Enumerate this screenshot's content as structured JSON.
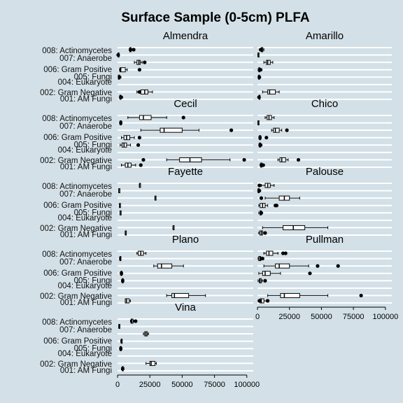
{
  "chart_data": {
    "type": "boxplot",
    "title": "Surface Sample (0-5cm) PLFA",
    "xlim": [
      0,
      105000
    ],
    "x_ticks": [
      0,
      25000,
      50000,
      75000,
      100000
    ],
    "x_tick_labels": [
      "0",
      "25000",
      "50000",
      "75000",
      "100000"
    ],
    "grid": "horizontal",
    "categories": [
      "001: AM Fungi",
      "002: Gram Negative",
      "004: Eukaryote",
      "005: Fungi",
      "006: Gram Positive",
      "007: Anaerobe",
      "008: Actinomycetes"
    ],
    "panels": [
      {
        "name": "Almendra",
        "boxes": [
          {
            "category": "001: AM Fungi",
            "whislo": 1500,
            "q1": 1800,
            "med": 2000,
            "q3": 2300,
            "whishi": 2600,
            "outliers": [
              2900
            ]
          },
          {
            "category": "002: Gram Negative",
            "whislo": 15000,
            "q1": 18000,
            "med": 21000,
            "q3": 23500,
            "whishi": 27000,
            "outliers": [
              17000
            ]
          },
          {
            "category": "004: Eukaryote",
            "whislo": 500,
            "q1": 700,
            "med": 900,
            "q3": 1100,
            "whishi": 1300,
            "outliers": [
              1600
            ]
          },
          {
            "category": "005: Fungi",
            "whislo": 1500,
            "q1": 2000,
            "med": 2500,
            "q3": 6000,
            "whishi": 7500,
            "outliers": [
              17000
            ]
          },
          {
            "category": "006: Gram Positive",
            "whislo": 13000,
            "q1": 15000,
            "med": 16500,
            "q3": 17500,
            "whishi": 19000,
            "outliers": [
              21000
            ]
          },
          {
            "category": "007: Anaerobe",
            "whislo": 300,
            "q1": 400,
            "med": 500,
            "q3": 600,
            "whishi": 700,
            "outliers": [
              500
            ]
          },
          {
            "category": "008: Actinomycetes",
            "whislo": 9000,
            "q1": 9500,
            "med": 10000,
            "q3": 10500,
            "whishi": 11000,
            "outliers": [
              12500
            ]
          }
        ]
      },
      {
        "name": "Amarillo",
        "boxes": [
          {
            "category": "001: AM Fungi",
            "whislo": 1000,
            "q1": 1200,
            "med": 1400,
            "q3": 1600,
            "whishi": 1800,
            "outliers": [
              1200
            ]
          },
          {
            "category": "002: Gram Negative",
            "whislo": 4000,
            "q1": 8000,
            "med": 9500,
            "q3": 14000,
            "whishi": 17000,
            "outliers": []
          },
          {
            "category": "004: Eukaryote",
            "whislo": 500,
            "q1": 800,
            "med": 1000,
            "q3": 1200,
            "whishi": 1500,
            "outliers": [
              1500
            ]
          },
          {
            "category": "005: Fungi",
            "whislo": 500,
            "q1": 1000,
            "med": 1300,
            "q3": 1600,
            "whishi": 2000,
            "outliers": [
              2500
            ]
          },
          {
            "category": "006: Gram Positive",
            "whislo": 5000,
            "q1": 7000,
            "med": 8000,
            "q3": 10000,
            "whishi": 12000,
            "outliers": []
          },
          {
            "category": "007: Anaerobe",
            "whislo": 300,
            "q1": 400,
            "med": 500,
            "q3": 600,
            "whishi": 700,
            "outliers": []
          },
          {
            "category": "008: Actinomycetes",
            "whislo": 2500,
            "q1": 3000,
            "med": 3500,
            "q3": 4200,
            "whishi": 5000,
            "outliers": [
              2500
            ]
          }
        ]
      },
      {
        "name": "Cecil",
        "boxes": [
          {
            "category": "001: AM Fungi",
            "whislo": 3000,
            "q1": 6000,
            "med": 8000,
            "q3": 10500,
            "whishi": 14000,
            "outliers": [
              18000
            ]
          },
          {
            "category": "002: Gram Negative",
            "whislo": 38000,
            "q1": 48000,
            "med": 56000,
            "q3": 65000,
            "whishi": 87000,
            "outliers": [
              20000,
              98000
            ]
          },
          {
            "category": "004: Eukaryote",
            "whislo": 2000,
            "q1": 3500,
            "med": 5000,
            "q3": 7000,
            "whishi": 10000,
            "outliers": [
              16000
            ]
          },
          {
            "category": "005: Fungi",
            "whislo": 3000,
            "q1": 5000,
            "med": 7000,
            "q3": 9500,
            "whishi": 13000,
            "outliers": [
              17000
            ]
          },
          {
            "category": "006: Gram Positive",
            "whislo": 18000,
            "q1": 33000,
            "med": 36000,
            "q3": 50000,
            "whishi": 63000,
            "outliers": [
              88000
            ]
          },
          {
            "category": "007: Anaerobe",
            "whislo": 1500,
            "q1": 2000,
            "med": 2500,
            "q3": 3000,
            "whishi": 3500,
            "outliers": []
          },
          {
            "category": "008: Actinomycetes",
            "whislo": 8000,
            "q1": 17000,
            "med": 20000,
            "q3": 26000,
            "whishi": 38000,
            "outliers": [
              51000
            ]
          }
        ]
      },
      {
        "name": "Chico",
        "boxes": [
          {
            "category": "001: AM Fungi",
            "whislo": 2000,
            "q1": 2500,
            "med": 3000,
            "q3": 3500,
            "whishi": 4000,
            "outliers": [
              4500
            ]
          },
          {
            "category": "002: Gram Negative",
            "whislo": 16000,
            "q1": 17500,
            "med": 19000,
            "q3": 22000,
            "whishi": 24000,
            "outliers": [
              32000
            ]
          },
          {
            "category": "004: Eukaryote",
            "whislo": 1000,
            "q1": 1500,
            "med": 2000,
            "q3": 2500,
            "whishi": 3000,
            "outliers": [
              2500
            ]
          },
          {
            "category": "005: Fungi",
            "whislo": 1000,
            "q1": 1500,
            "med": 2000,
            "q3": 2500,
            "whishi": 3000,
            "outliers": [
              7000
            ]
          },
          {
            "category": "006: Gram Positive",
            "whislo": 11000,
            "q1": 12500,
            "med": 14000,
            "q3": 17000,
            "whishi": 19000,
            "outliers": [
              23000
            ]
          },
          {
            "category": "007: Anaerobe",
            "whislo": 300,
            "q1": 400,
            "med": 500,
            "q3": 600,
            "whishi": 700,
            "outliers": []
          },
          {
            "category": "008: Actinomycetes",
            "whislo": 6000,
            "q1": 7500,
            "med": 9000,
            "q3": 11000,
            "whishi": 13000,
            "outliers": []
          }
        ]
      },
      {
        "name": "Fayette",
        "boxes": [
          {
            "category": "001: AM Fungi",
            "whislo": 6000,
            "q1": 6000,
            "med": 6000,
            "q3": 6000,
            "whishi": 6000,
            "outliers": []
          },
          {
            "category": "002: Gram Negative",
            "whislo": 43000,
            "q1": 43000,
            "med": 43000,
            "q3": 43000,
            "whishi": 43000,
            "outliers": []
          },
          {
            "category": "004: Eukaryote",
            "whislo": 2000,
            "q1": 2000,
            "med": 2000,
            "q3": 2000,
            "whishi": 2000,
            "outliers": []
          },
          {
            "category": "005: Fungi",
            "whislo": 1500,
            "q1": 1500,
            "med": 1500,
            "q3": 1500,
            "whishi": 1500,
            "outliers": []
          },
          {
            "category": "006: Gram Positive",
            "whislo": 29000,
            "q1": 29000,
            "med": 29000,
            "q3": 29000,
            "whishi": 29000,
            "outliers": []
          },
          {
            "category": "007: Anaerobe",
            "whislo": 1000,
            "q1": 1000,
            "med": 1000,
            "q3": 1000,
            "whishi": 1000,
            "outliers": []
          },
          {
            "category": "008: Actinomycetes",
            "whislo": 17000,
            "q1": 17000,
            "med": 17000,
            "q3": 17000,
            "whishi": 17000,
            "outliers": []
          }
        ]
      },
      {
        "name": "Palouse",
        "boxes": [
          {
            "category": "001: AM Fungi",
            "whislo": 1000,
            "q1": 1800,
            "med": 3000,
            "q3": 4000,
            "whishi": 5000,
            "outliers": [
              6000
            ]
          },
          {
            "category": "002: Gram Negative",
            "whislo": 4000,
            "q1": 20000,
            "med": 28000,
            "q3": 37000,
            "whishi": 55000,
            "outliers": []
          },
          {
            "category": "004: Eukaryote",
            "whislo": 1000,
            "q1": 2000,
            "med": 2500,
            "q3": 3000,
            "whishi": 3500,
            "outliers": [
              3000
            ]
          },
          {
            "category": "005: Fungi",
            "whislo": 1000,
            "q1": 2000,
            "med": 4000,
            "q3": 6000,
            "whishi": 8000,
            "outliers": [
              14000,
              15000
            ]
          },
          {
            "category": "006: Gram Positive",
            "whislo": 6000,
            "q1": 17000,
            "med": 21000,
            "q3": 25000,
            "whishi": 33000,
            "outliers": [
              3000
            ]
          },
          {
            "category": "007: Anaerobe",
            "whislo": 200,
            "q1": 500,
            "med": 800,
            "q3": 1200,
            "whishi": 2000,
            "outliers": [
              1500
            ]
          },
          {
            "category": "008: Actinomycetes",
            "whislo": 3000,
            "q1": 6000,
            "med": 8000,
            "q3": 10000,
            "whishi": 13000,
            "outliers": [
              1500
            ]
          }
        ]
      },
      {
        "name": "Plano",
        "boxes": [
          {
            "category": "001: AM Fungi",
            "whislo": 6000,
            "q1": 6000,
            "med": 7000,
            "q3": 9000,
            "whishi": 10000,
            "outliers": []
          },
          {
            "category": "002: Gram Negative",
            "whislo": 38000,
            "q1": 42000,
            "med": 44000,
            "q3": 55000,
            "whishi": 68000,
            "outliers": []
          },
          {
            "category": "004: Eukaryote",
            "whislo": 3000,
            "q1": 3500,
            "med": 4000,
            "q3": 4500,
            "whishi": 5000,
            "outliers": []
          },
          {
            "category": "005: Fungi",
            "whislo": 2000,
            "q1": 2500,
            "med": 3000,
            "q3": 3500,
            "whishi": 4000,
            "outliers": []
          },
          {
            "category": "006: Gram Positive",
            "whislo": 28000,
            "q1": 31000,
            "med": 34000,
            "q3": 42000,
            "whishi": 51000,
            "outliers": []
          },
          {
            "category": "007: Anaerobe",
            "whislo": 1500,
            "q1": 1800,
            "med": 2000,
            "q3": 2300,
            "whishi": 2600,
            "outliers": []
          },
          {
            "category": "008: Actinomycetes",
            "whislo": 15000,
            "q1": 16000,
            "med": 18000,
            "q3": 20000,
            "whishi": 22000,
            "outliers": []
          }
        ]
      },
      {
        "name": "Pullman",
        "boxes": [
          {
            "category": "001: AM Fungi",
            "whislo": 1000,
            "q1": 2000,
            "med": 3000,
            "q3": 5000,
            "whishi": 7000,
            "outliers": [
              1500,
              8000
            ]
          },
          {
            "category": "002: Gram Negative",
            "whislo": 8000,
            "q1": 18000,
            "med": 21000,
            "q3": 33000,
            "whishi": 55000,
            "outliers": [
              81000
            ]
          },
          {
            "category": "004: Eukaryote",
            "whislo": 500,
            "q1": 1500,
            "med": 2000,
            "q3": 3000,
            "whishi": 4000,
            "outliers": [
              6000
            ]
          },
          {
            "category": "005: Fungi",
            "whislo": 1000,
            "q1": 4000,
            "med": 6000,
            "q3": 10000,
            "whishi": 18000,
            "outliers": [
              41000
            ]
          },
          {
            "category": "006: Gram Positive",
            "whislo": 5000,
            "q1": 14000,
            "med": 17000,
            "q3": 25000,
            "whishi": 40000,
            "outliers": [
              47000,
              63000
            ]
          },
          {
            "category": "007: Anaerobe",
            "whislo": 500,
            "q1": 1000,
            "med": 2000,
            "q3": 2500,
            "whishi": 3000,
            "outliers": [
              3500,
              4000
            ]
          },
          {
            "category": "008: Actinomycetes",
            "whislo": 5000,
            "q1": 7000,
            "med": 9000,
            "q3": 12000,
            "whishi": 16000,
            "outliers": [
              20000,
              22000
            ]
          }
        ]
      },
      {
        "name": "Vina",
        "boxes": [
          {
            "category": "001: AM Fungi",
            "whislo": 3000,
            "q1": 3500,
            "med": 4000,
            "q3": 4500,
            "whishi": 5000,
            "outliers": []
          },
          {
            "category": "002: Gram Negative",
            "whislo": 22000,
            "q1": 25000,
            "med": 26000,
            "q3": 29000,
            "whishi": 30000,
            "outliers": []
          },
          {
            "category": "004: Eukaryote",
            "whislo": 1500,
            "q1": 2000,
            "med": 2500,
            "q3": 3000,
            "whishi": 3500,
            "outliers": []
          },
          {
            "category": "005: Fungi",
            "whislo": 2500,
            "q1": 2800,
            "med": 3000,
            "q3": 3200,
            "whishi": 3500,
            "outliers": []
          },
          {
            "category": "006: Gram Positive",
            "whislo": 20000,
            "q1": 21000,
            "med": 22000,
            "q3": 23000,
            "whishi": 24000,
            "outliers": []
          },
          {
            "category": "007: Anaerobe",
            "whislo": 800,
            "q1": 1000,
            "med": 1200,
            "q3": 1400,
            "whishi": 1600,
            "outliers": []
          },
          {
            "category": "008: Actinomycetes",
            "whislo": 10000,
            "q1": 10500,
            "med": 11000,
            "q3": 12000,
            "whishi": 12500,
            "outliers": [
              14000
            ]
          }
        ]
      }
    ]
  },
  "colors": {
    "background": "#d3e0e7",
    "gridline": "#ffffff",
    "box_fill": "#ffffff",
    "stroke": "#000000"
  }
}
